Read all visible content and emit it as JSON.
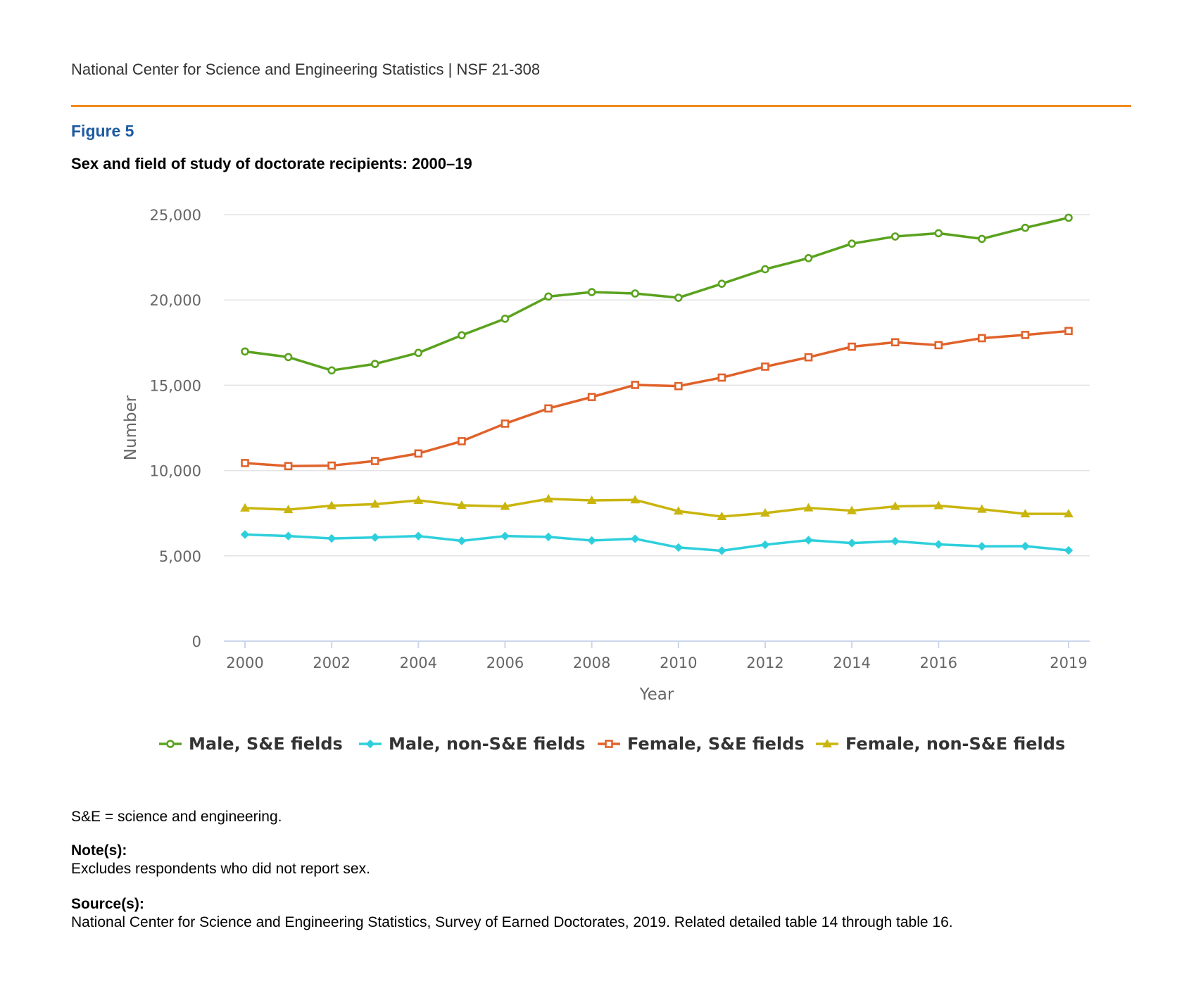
{
  "header": {
    "text": "National Center for Science and Engineering Statistics  |  NSF 21-308"
  },
  "colors": {
    "accent_rule": "#f08a1c",
    "figure_label": "#1e5aa0",
    "grid": "#e3e3e3",
    "axis": "#ccd6eb",
    "tick_text": "#666666"
  },
  "figure": {
    "label": "Figure 5",
    "title": "Sex and field of study of doctorate recipients: 2000–19"
  },
  "chart_data": {
    "type": "line",
    "xlabel": "Year",
    "ylabel": "Number",
    "x": [
      2000,
      2001,
      2002,
      2003,
      2004,
      2005,
      2006,
      2007,
      2008,
      2009,
      2010,
      2011,
      2012,
      2013,
      2014,
      2015,
      2016,
      2017,
      2018,
      2019
    ],
    "xticks": [
      2000,
      2002,
      2004,
      2006,
      2008,
      2010,
      2012,
      2014,
      2016,
      2019
    ],
    "ylim": [
      0,
      25000
    ],
    "yticks": [
      0,
      5000,
      10000,
      15000,
      20000,
      25000
    ],
    "ytick_labels": [
      "0",
      "5,000",
      "10,000",
      "15,000",
      "20,000",
      "25,000"
    ],
    "grid": true,
    "legend_position": "bottom",
    "series": [
      {
        "name": "Male, S&E fields",
        "color": "#5aa21e",
        "marker": "circle",
        "values": [
          16980,
          16650,
          15870,
          16250,
          16900,
          17930,
          18900,
          20200,
          20460,
          20380,
          20130,
          20950,
          21800,
          22450,
          23300,
          23720,
          23910,
          23580,
          24230,
          24820
        ]
      },
      {
        "name": "Male, non-S&E fields",
        "color": "#2ecfdc",
        "marker": "diamond",
        "values": [
          6250,
          6160,
          6020,
          6080,
          6160,
          5880,
          6160,
          6110,
          5900,
          6000,
          5490,
          5300,
          5650,
          5920,
          5750,
          5860,
          5670,
          5560,
          5570,
          5320
        ]
      },
      {
        "name": "Female, S&E fields",
        "color": "#e0622a",
        "marker": "square",
        "values": [
          10440,
          10260,
          10290,
          10560,
          11000,
          11720,
          12750,
          13640,
          14310,
          15020,
          14950,
          15450,
          16090,
          16640,
          17260,
          17520,
          17350,
          17760,
          17950,
          18180
        ]
      },
      {
        "name": "Female, non-S&E fields",
        "color": "#c9b50e",
        "marker": "triangle",
        "values": [
          7800,
          7710,
          7940,
          8030,
          8250,
          7960,
          7900,
          8340,
          8250,
          8280,
          7620,
          7300,
          7510,
          7810,
          7650,
          7900,
          7940,
          7730,
          7460,
          7460
        ]
      }
    ]
  },
  "footer": {
    "abbreviation": "S&E = science and engineering.",
    "note_heading": "Note(s):",
    "note_text": "Excludes respondents who did not report sex.",
    "source_heading": "Source(s):",
    "source_text": "National Center for Science and Engineering Statistics, Survey of Earned Doctorates, 2019. Related detailed table 14 through table 16."
  }
}
